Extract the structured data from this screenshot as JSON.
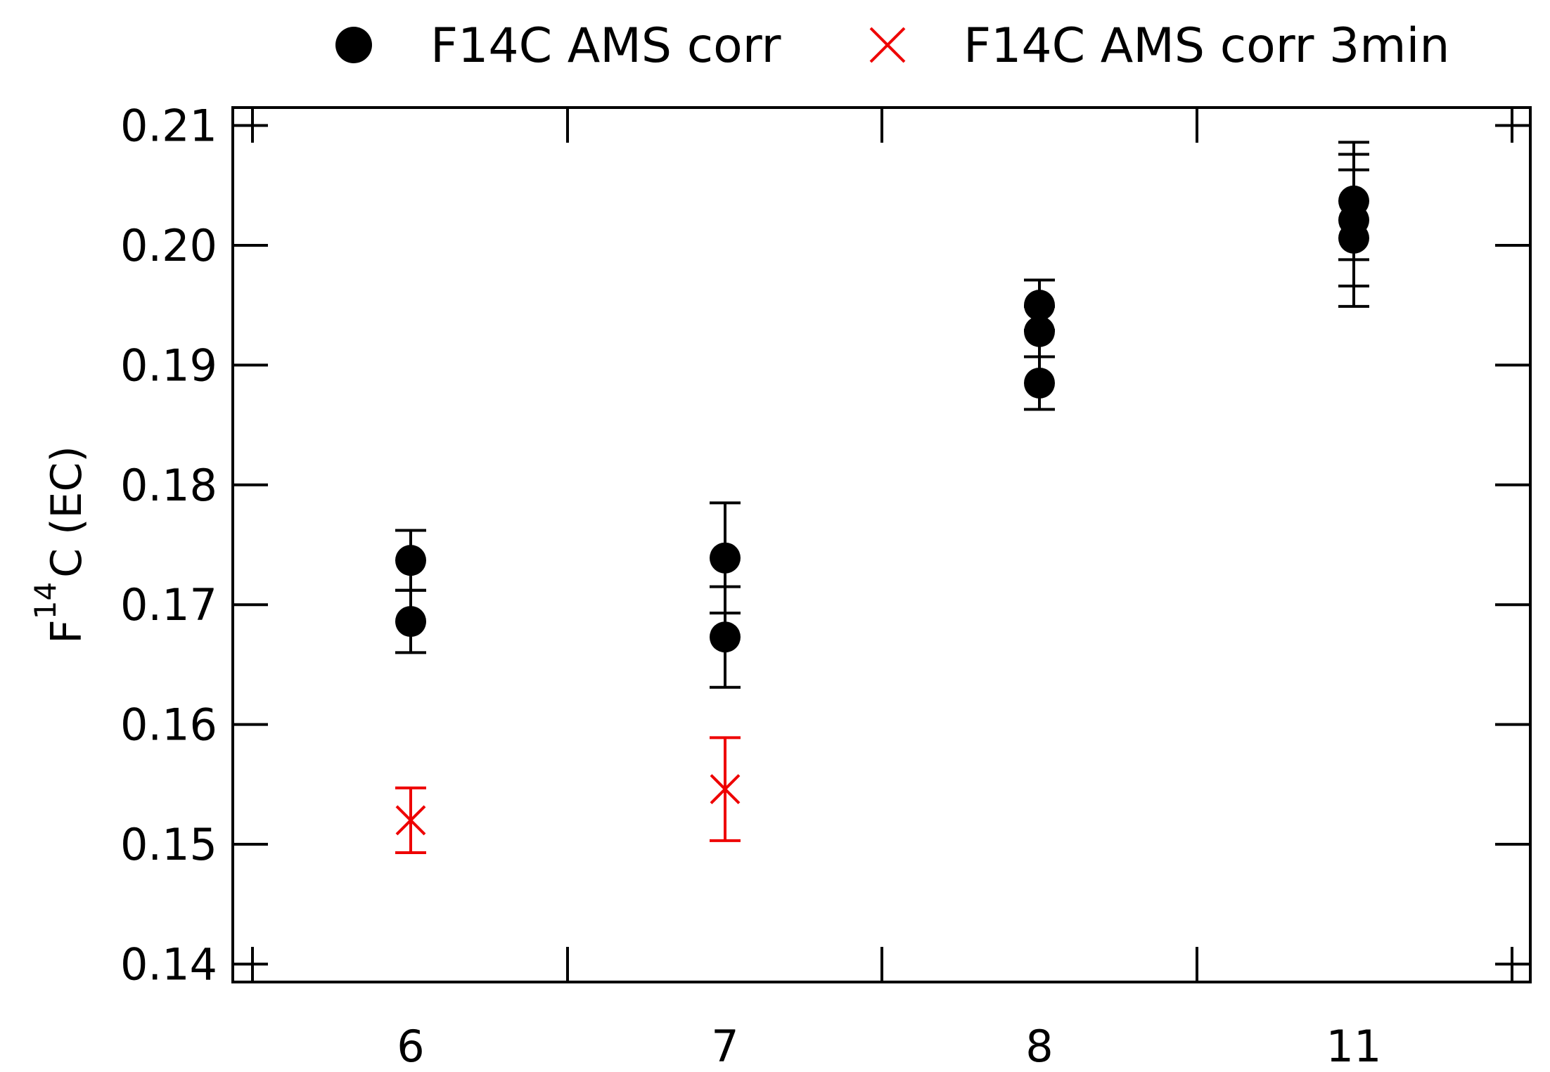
{
  "chart_data": {
    "type": "scatter",
    "title": "",
    "xlabel": "",
    "ylabel": {
      "prefix": "F",
      "superscript": "14",
      "suffix": "C (EC)"
    },
    "categories": [
      "6",
      "7",
      "8",
      "11"
    ],
    "ylim": [
      0.1385,
      0.2115
    ],
    "yticks": [
      0.14,
      0.15,
      0.16,
      0.17,
      0.18,
      0.19,
      0.2,
      0.21
    ],
    "ytick_labels": [
      "0.14",
      "0.15",
      "0.16",
      "0.17",
      "0.18",
      "0.19",
      "0.20",
      "0.21"
    ],
    "legend_position": "top (above plot)",
    "grid": false,
    "series": [
      {
        "name": "F14C AMS corr",
        "marker": "filled-circle",
        "color": "#000000",
        "points": [
          {
            "x": "6",
            "y": 0.1737,
            "err": 0.0025
          },
          {
            "x": "6",
            "y": 0.1686,
            "err": 0.0026
          },
          {
            "x": "7",
            "y": 0.1739,
            "err": 0.0046
          },
          {
            "x": "7",
            "y": 0.1673,
            "err": 0.0042
          },
          {
            "x": "8",
            "y": 0.195,
            "err": 0.0021
          },
          {
            "x": "8",
            "y": 0.1928,
            "err": 0.0021
          },
          {
            "x": "8",
            "y": 0.1885,
            "err": 0.0022
          },
          {
            "x": "11",
            "y": 0.2037,
            "err": 0.0049
          },
          {
            "x": "11",
            "y": 0.2021,
            "err": 0.0055
          },
          {
            "x": "11",
            "y": 0.2006,
            "err": 0.0057
          }
        ]
      },
      {
        "name": "F14C AMS corr 3min",
        "marker": "x-cross",
        "color": "#ee0000",
        "points": [
          {
            "x": "6",
            "y": 0.152,
            "err": 0.0027
          },
          {
            "x": "7",
            "y": 0.1546,
            "err": 0.0043
          }
        ]
      }
    ]
  }
}
